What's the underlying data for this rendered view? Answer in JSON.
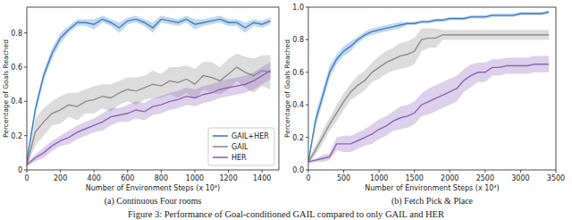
{
  "caption": "Figure 3: Performance of Goal-conditioned GAIL compared to only GAIL and HER",
  "chart_data": [
    {
      "type": "line",
      "title": "(a) Continuous Four rooms",
      "x_label": "Number of Environment Steps (x 10³)",
      "y_label": "Percentage of Goals Reached",
      "xlim": [
        0,
        1500
      ],
      "ylim": [
        0,
        0.95
      ],
      "xticks": [
        0,
        200,
        400,
        600,
        800,
        1000,
        1200,
        1400
      ],
      "yticks": [
        0,
        0.2,
        0.4,
        0.6,
        0.8
      ],
      "grid": false,
      "legend": "lower right",
      "x": [
        0,
        50,
        100,
        150,
        200,
        250,
        300,
        350,
        400,
        450,
        500,
        550,
        600,
        650,
        700,
        750,
        800,
        850,
        900,
        950,
        1000,
        1050,
        1100,
        1150,
        1200,
        1250,
        1300,
        1350,
        1400,
        1450
      ],
      "series": [
        {
          "name": "GAIL+HER",
          "color": "#3b7fc4",
          "values": [
            0.05,
            0.35,
            0.55,
            0.68,
            0.77,
            0.82,
            0.86,
            0.86,
            0.85,
            0.88,
            0.86,
            0.83,
            0.87,
            0.88,
            0.86,
            0.83,
            0.88,
            0.87,
            0.86,
            0.88,
            0.85,
            0.86,
            0.87,
            0.88,
            0.86,
            0.86,
            0.83,
            0.86,
            0.85,
            0.87
          ],
          "error": [
            0.01,
            0.03,
            0.03,
            0.03,
            0.03,
            0.02,
            0.02,
            0.02,
            0.03,
            0.02,
            0.02,
            0.03,
            0.02,
            0.02,
            0.02,
            0.03,
            0.02,
            0.02,
            0.02,
            0.02,
            0.03,
            0.02,
            0.02,
            0.02,
            0.02,
            0.02,
            0.03,
            0.02,
            0.02,
            0.02
          ]
        },
        {
          "name": "GAIL",
          "color": "#8c8c8c",
          "values": [
            0.03,
            0.22,
            0.28,
            0.33,
            0.35,
            0.38,
            0.37,
            0.4,
            0.41,
            0.43,
            0.42,
            0.45,
            0.47,
            0.46,
            0.48,
            0.5,
            0.49,
            0.52,
            0.51,
            0.53,
            0.5,
            0.55,
            0.54,
            0.52,
            0.56,
            0.6,
            0.57,
            0.55,
            0.58,
            0.57
          ],
          "error": [
            0.01,
            0.08,
            0.08,
            0.07,
            0.08,
            0.07,
            0.08,
            0.07,
            0.08,
            0.07,
            0.08,
            0.07,
            0.07,
            0.08,
            0.07,
            0.08,
            0.07,
            0.08,
            0.09,
            0.08,
            0.09,
            0.08,
            0.09,
            0.08,
            0.09,
            0.08,
            0.09,
            0.1,
            0.09,
            0.1
          ]
        },
        {
          "name": "HER",
          "color": "#8e63b8",
          "values": [
            0.03,
            0.07,
            0.1,
            0.14,
            0.17,
            0.19,
            0.22,
            0.24,
            0.26,
            0.28,
            0.31,
            0.32,
            0.33,
            0.35,
            0.34,
            0.37,
            0.38,
            0.4,
            0.41,
            0.43,
            0.42,
            0.44,
            0.45,
            0.47,
            0.48,
            0.49,
            0.5,
            0.52,
            0.55,
            0.58
          ],
          "error": [
            0.01,
            0.02,
            0.03,
            0.03,
            0.03,
            0.04,
            0.04,
            0.04,
            0.04,
            0.05,
            0.05,
            0.04,
            0.05,
            0.05,
            0.05,
            0.05,
            0.05,
            0.05,
            0.05,
            0.05,
            0.05,
            0.05,
            0.05,
            0.05,
            0.05,
            0.05,
            0.05,
            0.05,
            0.05,
            0.05
          ]
        }
      ]
    },
    {
      "type": "line",
      "title": "(b) Fetch Pick & Place",
      "x_label": "Number of Environment Steps (x 10³)",
      "y_label": "Percentage of Goals Reached",
      "xlim": [
        0,
        3500
      ],
      "ylim": [
        0,
        1.0
      ],
      "xticks": [
        0,
        500,
        1000,
        1500,
        2000,
        2500,
        3000,
        3500
      ],
      "yticks": [
        {
          "value": 0,
          "label": "0.0"
        },
        0.2,
        0.4,
        0.6,
        0.8,
        {
          "value": 1,
          "label": "1.0"
        }
      ],
      "grid": false,
      "x": [
        0,
        100,
        200,
        300,
        400,
        500,
        600,
        700,
        800,
        900,
        1000,
        1100,
        1200,
        1300,
        1400,
        1500,
        1600,
        1700,
        1800,
        1900,
        2000,
        2100,
        2200,
        2300,
        2400,
        2500,
        2600,
        2700,
        2800,
        2900,
        3000,
        3100,
        3200,
        3300,
        3400
      ],
      "series": [
        {
          "name": "GAIL+HER",
          "color": "#3b7fc4",
          "values": [
            0.05,
            0.3,
            0.45,
            0.6,
            0.68,
            0.73,
            0.76,
            0.8,
            0.83,
            0.85,
            0.86,
            0.87,
            0.88,
            0.89,
            0.9,
            0.9,
            0.91,
            0.91,
            0.92,
            0.92,
            0.93,
            0.93,
            0.93,
            0.94,
            0.94,
            0.94,
            0.95,
            0.95,
            0.95,
            0.95,
            0.96,
            0.96,
            0.96,
            0.96,
            0.97
          ],
          "error": [
            0.01,
            0.04,
            0.04,
            0.04,
            0.03,
            0.03,
            0.03,
            0.02,
            0.02,
            0.02,
            0.02,
            0.02,
            0.02,
            0.02,
            0.01,
            0.01,
            0.01,
            0.01,
            0.01,
            0.01,
            0.01,
            0.01,
            0.01,
            0.01,
            0.01,
            0.01,
            0.01,
            0.01,
            0.01,
            0.01,
            0.01,
            0.01,
            0.01,
            0.01,
            0.01
          ]
        },
        {
          "name": "GAIL",
          "color": "#8c8c8c",
          "values": [
            0.05,
            0.12,
            0.2,
            0.28,
            0.35,
            0.42,
            0.48,
            0.52,
            0.55,
            0.6,
            0.63,
            0.66,
            0.68,
            0.7,
            0.71,
            0.73,
            0.8,
            0.81,
            0.81,
            0.83,
            0.83,
            0.83,
            0.83,
            0.83,
            0.83,
            0.83,
            0.83,
            0.83,
            0.83,
            0.83,
            0.83,
            0.83,
            0.83,
            0.83,
            0.83
          ],
          "error": [
            0.01,
            0.03,
            0.04,
            0.04,
            0.05,
            0.05,
            0.05,
            0.06,
            0.06,
            0.06,
            0.07,
            0.07,
            0.07,
            0.08,
            0.08,
            0.08,
            0.07,
            0.06,
            0.06,
            0.03,
            0.03,
            0.03,
            0.03,
            0.03,
            0.03,
            0.03,
            0.03,
            0.03,
            0.03,
            0.03,
            0.03,
            0.03,
            0.03,
            0.03,
            0.03
          ]
        },
        {
          "name": "HER",
          "color": "#8e63b8",
          "values": [
            0.05,
            0.06,
            0.07,
            0.08,
            0.16,
            0.16,
            0.16,
            0.18,
            0.2,
            0.22,
            0.25,
            0.27,
            0.3,
            0.32,
            0.33,
            0.35,
            0.4,
            0.42,
            0.44,
            0.46,
            0.48,
            0.5,
            0.55,
            0.58,
            0.6,
            0.6,
            0.63,
            0.63,
            0.64,
            0.64,
            0.64,
            0.64,
            0.65,
            0.65,
            0.65
          ],
          "error": [
            0.01,
            0.01,
            0.02,
            0.02,
            0.04,
            0.05,
            0.05,
            0.05,
            0.05,
            0.06,
            0.06,
            0.06,
            0.06,
            0.07,
            0.07,
            0.07,
            0.07,
            0.08,
            0.08,
            0.08,
            0.08,
            0.08,
            0.07,
            0.07,
            0.06,
            0.06,
            0.05,
            0.05,
            0.05,
            0.05,
            0.05,
            0.05,
            0.05,
            0.05,
            0.05
          ]
        }
      ]
    }
  ]
}
